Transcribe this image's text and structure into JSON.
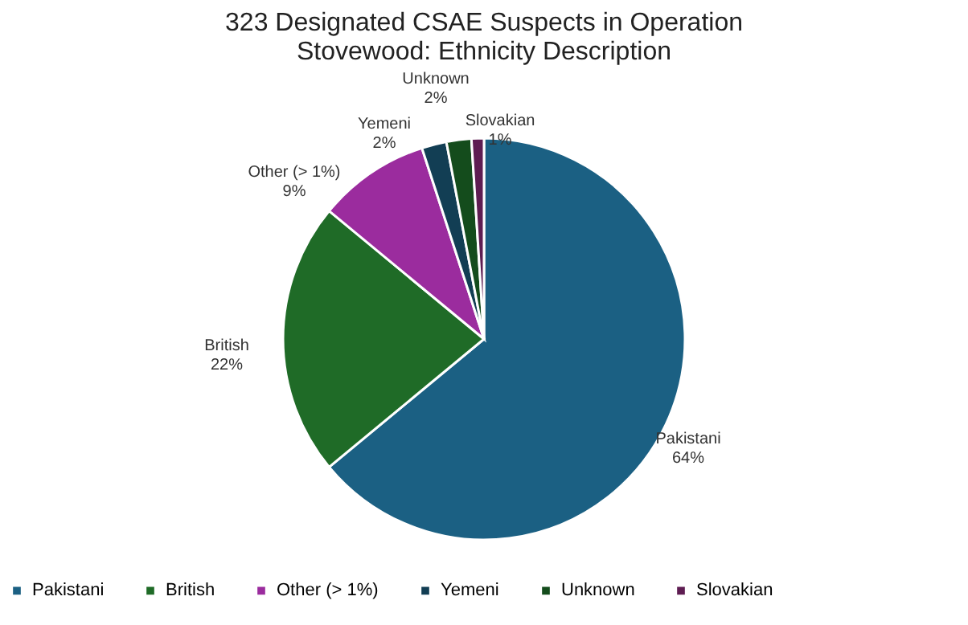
{
  "chart_data": {
    "type": "pie",
    "title": "323 Designated CSAE Suspects in Operation Stovewood: Ethnicity Description",
    "categories": [
      "Pakistani",
      "British",
      "Other (> 1%)",
      "Yemeni",
      "Unknown",
      "Slovakian"
    ],
    "values": [
      64,
      22,
      9,
      2,
      2,
      1
    ],
    "value_labels": [
      "64%",
      "22%",
      "9%",
      "2%",
      "2%",
      "1%"
    ],
    "colors": [
      "#1b6083",
      "#1f6b27",
      "#9b2c9e",
      "#123e54",
      "#144c1c",
      "#5e1d52"
    ],
    "legend": "bottom"
  }
}
